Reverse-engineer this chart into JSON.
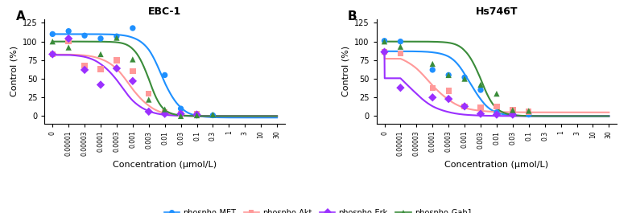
{
  "panel_A": {
    "title": "EBC-1",
    "label": "A",
    "series": {
      "phospho-MET": {
        "color": "#1E90FF",
        "marker": "o",
        "scatter_x": [
          0,
          1e-05,
          3e-05,
          0.0001,
          0.0003,
          0.001,
          0.01,
          0.03,
          0.1,
          0.3
        ],
        "scatter_y": [
          110,
          114,
          108,
          104,
          107,
          118,
          55,
          10,
          2,
          1
        ],
        "curve_top": 110,
        "curve_bottom": -2,
        "ec50": 0.008,
        "hill": 1.5
      },
      "phospho-Akt": {
        "color": "#FF9999",
        "marker": "s",
        "scatter_x": [
          0,
          1e-05,
          3e-05,
          0.0001,
          0.0003,
          0.001,
          0.003,
          0.01,
          0.03,
          0.1
        ],
        "scatter_y": [
          83,
          100,
          68,
          63,
          75,
          60,
          30,
          5,
          3,
          3
        ],
        "curve_top": 83,
        "curve_bottom": 0,
        "ec50": 0.0008,
        "hill": 1.2
      },
      "phospho-Erk": {
        "color": "#9B30FF",
        "marker": "D",
        "scatter_x": [
          0,
          1e-05,
          3e-05,
          0.0001,
          0.0003,
          0.001,
          0.003,
          0.01,
          0.03,
          0.1
        ],
        "scatter_y": [
          83,
          104,
          62,
          42,
          64,
          47,
          6,
          3,
          3,
          2
        ],
        "curve_top": 83,
        "curve_bottom": 0,
        "ec50": 0.0004,
        "hill": 1.2
      },
      "phospho-Gab1": {
        "color": "#3A8C3A",
        "marker": "^",
        "scatter_x": [
          0,
          1e-05,
          0.0001,
          0.0003,
          0.001,
          0.003,
          0.01,
          0.03,
          0.1,
          0.3
        ],
        "scatter_y": [
          100,
          92,
          83,
          105,
          76,
          22,
          9,
          0,
          1,
          2
        ],
        "curve_top": 100,
        "curve_bottom": 0,
        "ec50": 0.003,
        "hill": 2.0
      }
    }
  },
  "panel_B": {
    "title": "Hs746T",
    "label": "B",
    "series": {
      "phospho-MET": {
        "color": "#1E90FF",
        "marker": "o",
        "scatter_x": [
          0,
          1e-05,
          0.0001,
          0.0003,
          0.001,
          0.003,
          0.01,
          0.03,
          0.1
        ],
        "scatter_y": [
          101,
          100,
          62,
          55,
          52,
          35,
          5,
          2,
          2
        ],
        "curve_top": 87,
        "curve_bottom": 0,
        "ec50": 0.0015,
        "hill": 1.5
      },
      "phospho-Akt": {
        "color": "#FF9999",
        "marker": "s",
        "scatter_x": [
          0,
          1e-05,
          0.0001,
          0.0003,
          0.001,
          0.003,
          0.01,
          0.03,
          0.1
        ],
        "scatter_y": [
          86,
          84,
          38,
          34,
          13,
          12,
          13,
          8,
          6
        ],
        "curve_top": 86,
        "curve_bottom": 5,
        "ec50": 8e-05,
        "hill": 1.0
      },
      "phospho-Erk": {
        "color": "#9B30FF",
        "marker": "D",
        "scatter_x": [
          0,
          1e-05,
          0.0001,
          0.0003,
          0.001,
          0.003,
          0.01,
          0.03
        ],
        "scatter_y": [
          86,
          38,
          25,
          23,
          13,
          3,
          2,
          2
        ],
        "curve_top": 86,
        "curve_bottom": 0,
        "ec50": 1.5e-05,
        "hill": 0.9
      },
      "phospho-Gab1": {
        "color": "#3A8C3A",
        "marker": "^",
        "scatter_x": [
          0,
          1e-05,
          0.0001,
          0.0003,
          0.001,
          0.003,
          0.01,
          0.03,
          0.1
        ],
        "scatter_y": [
          100,
          93,
          70,
          55,
          50,
          42,
          30,
          8,
          7
        ],
        "curve_top": 100,
        "curve_bottom": 0,
        "ec50": 0.003,
        "hill": 1.8
      }
    }
  },
  "x_ticks": [
    0,
    1e-05,
    3e-05,
    0.0001,
    0.0003,
    0.001,
    0.003,
    0.01,
    0.03,
    0.1,
    0.3,
    1,
    3,
    10,
    30
  ],
  "x_tick_labels": [
    "0",
    "0.00001",
    "0.00003",
    "0.0001",
    "0.0003",
    "0.001",
    "0.003",
    "0.01",
    "0.03",
    "0.1",
    "0.3",
    "1",
    "3",
    "10",
    "30"
  ],
  "ylabel": "Control (%)",
  "xlabel": "Concentration (μmol/L)",
  "ylim": [
    -10,
    130
  ],
  "yticks": [
    0,
    25,
    50,
    75,
    100,
    125
  ],
  "legend_order": [
    "phospho-MET",
    "phospho-Akt",
    "phospho-Erk",
    "phospho-Gab1"
  ],
  "legend_markers": [
    "o",
    "s",
    "D",
    "^"
  ],
  "legend_colors": [
    "#1E90FF",
    "#FF9999",
    "#9B30FF",
    "#3A8C3A"
  ],
  "bg_color": "#FFFFFF",
  "series_order": [
    "phospho-MET",
    "phospho-Akt",
    "phospho-Erk",
    "phospho-Gab1"
  ]
}
